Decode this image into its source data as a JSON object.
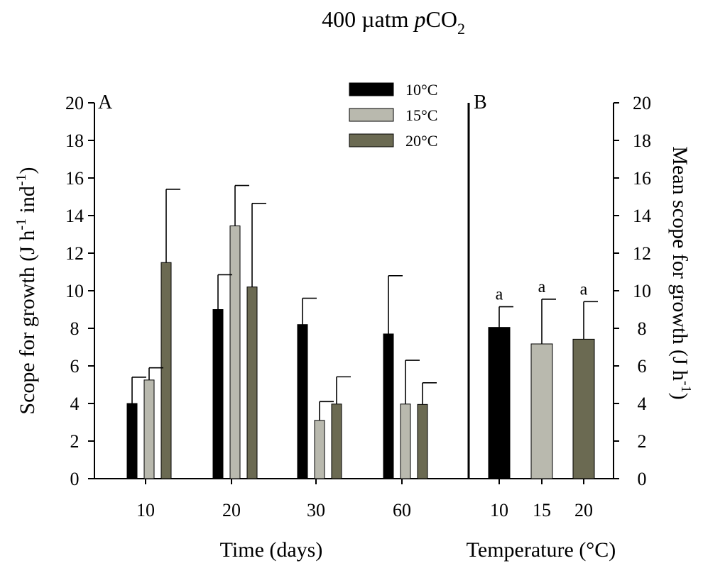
{
  "title": {
    "prefix": "400 µatm ",
    "italic": "p",
    "chem": "CO",
    "sub": "2"
  },
  "chart_data": [
    {
      "panel": "A",
      "type": "bar",
      "xlabel": "Time (days)",
      "ylabel": {
        "main": "Scope for growth (J h",
        "sup1": "-1",
        "mid": " ind",
        "sup2": "-1",
        "end": ")"
      },
      "ylim": [
        0,
        20
      ],
      "yticks": [
        0,
        2,
        4,
        6,
        8,
        10,
        12,
        14,
        16,
        18,
        20
      ],
      "categories": [
        "10",
        "20",
        "30",
        "60"
      ],
      "series": [
        {
          "name": "10°C",
          "color": "#000000",
          "values": [
            4.0,
            9.0,
            8.2,
            7.7
          ],
          "errors": [
            1.4,
            1.85,
            1.4,
            3.1
          ]
        },
        {
          "name": "15°C",
          "color": "#b9b9ae",
          "values": [
            5.25,
            13.45,
            3.1,
            3.97
          ],
          "errors": [
            0.65,
            2.15,
            1.0,
            2.33
          ]
        },
        {
          "name": "20°C",
          "color": "#6b6a52",
          "values": [
            11.5,
            10.2,
            3.97,
            3.95
          ],
          "errors": [
            3.9,
            4.45,
            1.45,
            1.15
          ]
        }
      ],
      "legend_position": "top-right",
      "grid": false
    },
    {
      "panel": "B",
      "type": "bar",
      "xlabel": "Temperature (°C)",
      "ylabel": {
        "main": "Mean scope for growth (J h",
        "sup1": "-1",
        "end": ")"
      },
      "ylim": [
        0,
        20
      ],
      "yticks": [
        0,
        2,
        4,
        6,
        8,
        10,
        12,
        14,
        16,
        18,
        20
      ],
      "categories": [
        "10",
        "15",
        "20"
      ],
      "values": [
        8.05,
        7.17,
        7.42
      ],
      "errors": [
        1.1,
        2.38,
        2.0
      ],
      "colors": [
        "#000000",
        "#b9b9ae",
        "#6b6a52"
      ],
      "annotations": [
        "a",
        "a",
        "a"
      ],
      "grid": false
    }
  ]
}
